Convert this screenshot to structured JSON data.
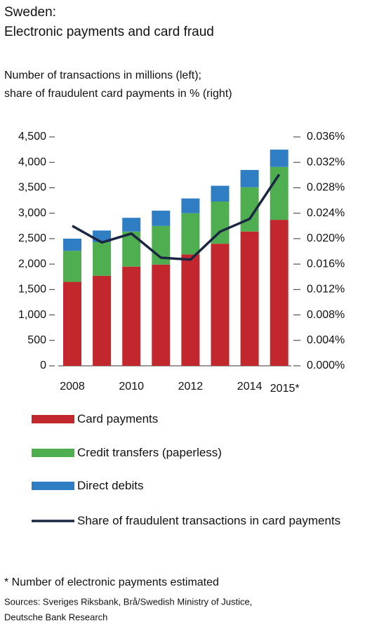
{
  "chart_data": {
    "type": "bar",
    "title": [
      "Sweden:",
      "Electronic payments and card fraud"
    ],
    "subtitle": [
      "Number of transactions in millions (left);",
      "share of fraudulent card payments in % (right)"
    ],
    "categories": [
      "2008",
      null,
      "2010",
      null,
      "2012",
      null,
      "2014",
      "2015*"
    ],
    "stacked": true,
    "series": [
      {
        "name": "Card payments",
        "type": "bar",
        "color": "#c1272d",
        "values": [
          1650,
          1770,
          1950,
          1990,
          2190,
          2400,
          2640,
          2870
        ]
      },
      {
        "name": "Credit transfers (paperless)",
        "type": "bar",
        "color": "#4fae4f",
        "values": [
          610,
          660,
          690,
          760,
          810,
          830,
          870,
          1040
        ]
      },
      {
        "name": "Direct debits",
        "type": "bar",
        "color": "#2f7dc3",
        "values": [
          240,
          230,
          270,
          300,
          290,
          310,
          340,
          340
        ]
      },
      {
        "name": "Share of fraudulent transactions in card payments",
        "type": "line",
        "axis": "y2",
        "color": "#1b2742",
        "values": [
          0.022,
          0.0194,
          0.0208,
          0.017,
          0.0167,
          0.0211,
          0.0231,
          0.0301
        ]
      }
    ],
    "ylim": [
      0,
      4500
    ],
    "yticks": [
      0,
      500,
      {
        "value": 1000,
        "label": "1,000"
      },
      {
        "value": 1500,
        "label": "1,500"
      },
      {
        "value": 2000,
        "label": "2,000"
      },
      {
        "value": 2500,
        "label": "2,500"
      },
      {
        "value": 3000,
        "label": "3,000"
      },
      {
        "value": 3500,
        "label": "3,500"
      },
      {
        "value": 4000,
        "label": "4,000"
      },
      {
        "value": 4500,
        "label": "4,500"
      }
    ],
    "y2lim": [
      0,
      0.036
    ],
    "y2ticks": [
      {
        "value": 0,
        "label": "0.000%"
      },
      {
        "value": 0.004,
        "label": "0.004%"
      },
      {
        "value": 0.008,
        "label": "0.008%"
      },
      {
        "value": 0.012,
        "label": "0.012%"
      },
      {
        "value": 0.016,
        "label": "0.016%"
      },
      {
        "value": 0.02,
        "label": "0.020%"
      },
      {
        "value": 0.024,
        "label": "0.024%"
      },
      {
        "value": 0.028,
        "label": "0.028%"
      },
      {
        "value": 0.032,
        "label": "0.032%"
      },
      {
        "value": 0.036,
        "label": "0.036%"
      }
    ],
    "footnote": "* Number of electronic payments estimated",
    "sources": [
      "Sources: Sveriges Riksbank, Brå/Swedish Ministry of Justice,",
      "Deutsche Bank Research"
    ]
  }
}
